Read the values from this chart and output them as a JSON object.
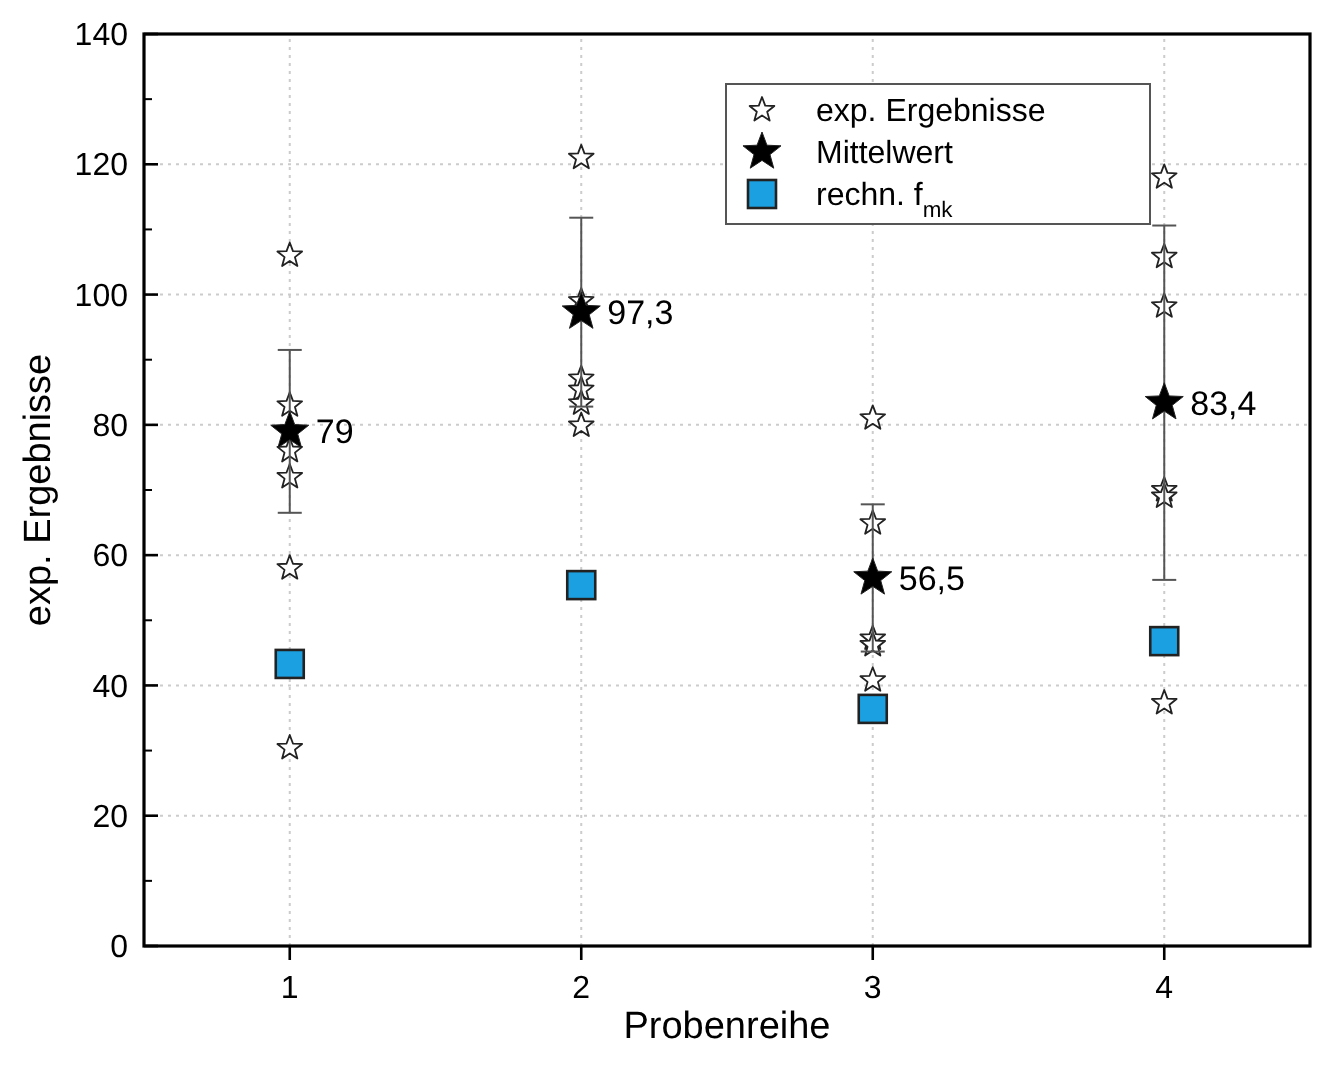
{
  "chart_data": {
    "type": "scatter",
    "xlabel": "Probenreihe",
    "ylabel": "exp. Ergebnisse",
    "xlim": [
      0.5,
      4.5
    ],
    "xticks": [
      1,
      2,
      3,
      4
    ],
    "ylim": [
      0,
      140
    ],
    "yticks": [
      0,
      20,
      40,
      60,
      80,
      100,
      120,
      140
    ],
    "grid": true,
    "legend": "top right",
    "series": [
      {
        "name": "exp. Ergebnisse",
        "marker": "star",
        "color": "#ffffff",
        "x": [
          1,
          1,
          1,
          1,
          1,
          1,
          2,
          2,
          2,
          2,
          2,
          2,
          3,
          3,
          3,
          3,
          3,
          4,
          4,
          4,
          4,
          4,
          4
        ],
        "values": [
          106,
          83,
          76,
          72,
          58,
          30.4,
          121,
          99,
          87.1,
          85.4,
          83.3,
          79.9,
          81,
          64.9,
          47.2,
          46.2,
          40.8,
          118,
          105.8,
          98.2,
          70,
          69,
          37.3
        ]
      },
      {
        "name": "Mittelwert",
        "marker": "star",
        "color": "#000000",
        "x": [
          1,
          2,
          3,
          4
        ],
        "values": [
          79,
          97.3,
          56.5,
          83.4
        ],
        "errors": [
          12.5,
          14.5,
          11.3,
          27.2
        ],
        "value_labels": [
          "79",
          "97,3",
          "56,5",
          "83,4"
        ]
      },
      {
        "name": "rechn. f$_{mk}$",
        "marker": "square",
        "color": "#1ba1e2",
        "x": [
          1,
          2,
          3,
          4
        ],
        "values": [
          43.3,
          55.4,
          36.4,
          46.8
        ]
      }
    ]
  }
}
